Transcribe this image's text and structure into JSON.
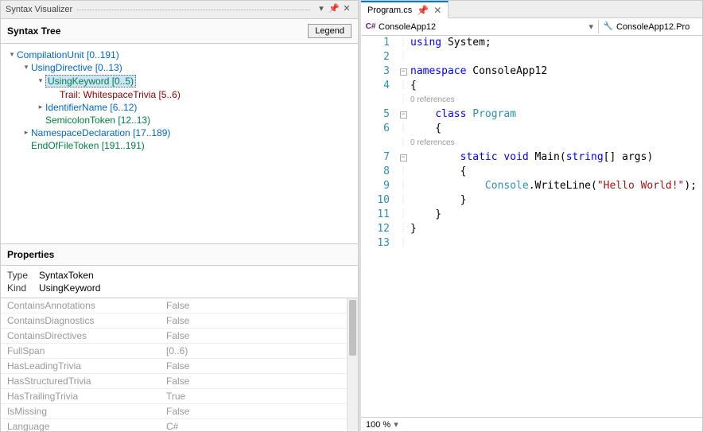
{
  "panelTitle": "Syntax Visualizer",
  "sectionTitle": "Syntax Tree",
  "legendLabel": "Legend",
  "tree": [
    {
      "indent": 0,
      "toggle": "▾",
      "cls": "c-blue",
      "text": "CompilationUnit [0..191)",
      "sel": false
    },
    {
      "indent": 1,
      "toggle": "▾",
      "cls": "c-blue",
      "text": "UsingDirective [0..13)",
      "sel": false
    },
    {
      "indent": 2,
      "toggle": "▾",
      "cls": "c-green",
      "text": "UsingKeyword [0..5)",
      "sel": true
    },
    {
      "indent": 3,
      "toggle": "",
      "cls": "c-darkred",
      "text": "Trail: WhitespaceTrivia [5..6)",
      "sel": false
    },
    {
      "indent": 2,
      "toggle": "▸",
      "cls": "c-blue",
      "text": "IdentifierName [6..12)",
      "sel": false
    },
    {
      "indent": 2,
      "toggle": "",
      "cls": "c-green",
      "text": "SemicolonToken [12..13)",
      "sel": false
    },
    {
      "indent": 1,
      "toggle": "▸",
      "cls": "c-blue",
      "text": "NamespaceDeclaration [17..189)",
      "sel": false
    },
    {
      "indent": 1,
      "toggle": "",
      "cls": "c-green",
      "text": "EndOfFileToken [191..191)",
      "sel": false
    }
  ],
  "propsTitle": "Properties",
  "propTop": [
    {
      "label": "Type",
      "value": "SyntaxToken"
    },
    {
      "label": "Kind",
      "value": "UsingKeyword"
    }
  ],
  "propGrid": [
    {
      "name": "ContainsAnnotations",
      "value": "False"
    },
    {
      "name": "ContainsDiagnostics",
      "value": "False"
    },
    {
      "name": "ContainsDirectives",
      "value": "False"
    },
    {
      "name": "FullSpan",
      "value": "[0..6)"
    },
    {
      "name": "HasLeadingTrivia",
      "value": "False"
    },
    {
      "name": "HasStructuredTrivia",
      "value": "False"
    },
    {
      "name": "HasTrailingTrivia",
      "value": "True"
    },
    {
      "name": "IsMissing",
      "value": "False"
    },
    {
      "name": "Language",
      "value": "C#"
    }
  ],
  "tab": {
    "label": "Program.cs",
    "closeVisible": true
  },
  "contextLeft": {
    "icon": "cs",
    "label": "ConsoleApp12"
  },
  "contextRight": {
    "icon": "wr",
    "label": "ConsoleApp12.Pro"
  },
  "zoom": "100 %",
  "codelens": "0 references",
  "code": {
    "lines": [
      {
        "n": 1,
        "fold": "",
        "segs": [
          {
            "t": "using",
            "c": "kw"
          },
          {
            "t": " System;",
            "c": "plain"
          }
        ]
      },
      {
        "n": 2,
        "fold": "",
        "segs": []
      },
      {
        "n": 3,
        "fold": "box",
        "segs": [
          {
            "t": "namespace",
            "c": "kw"
          },
          {
            "t": " ConsoleApp12",
            "c": "plain"
          }
        ]
      },
      {
        "n": 4,
        "fold": "",
        "segs": [
          {
            "t": "{",
            "c": "plain"
          }
        ]
      },
      {
        "n": null,
        "fold": "",
        "codelens": true,
        "indent": "    "
      },
      {
        "n": 5,
        "fold": "box",
        "segs": [
          {
            "t": "    ",
            "c": "plain"
          },
          {
            "t": "class",
            "c": "kw"
          },
          {
            "t": " ",
            "c": "plain"
          },
          {
            "t": "Program",
            "c": "type"
          }
        ]
      },
      {
        "n": 6,
        "fold": "",
        "segs": [
          {
            "t": "    {",
            "c": "plain"
          }
        ]
      },
      {
        "n": null,
        "fold": "",
        "codelens": true,
        "indent": "        "
      },
      {
        "n": 7,
        "fold": "box",
        "segs": [
          {
            "t": "        ",
            "c": "plain"
          },
          {
            "t": "static",
            "c": "kw"
          },
          {
            "t": " ",
            "c": "plain"
          },
          {
            "t": "void",
            "c": "kw"
          },
          {
            "t": " Main(",
            "c": "plain"
          },
          {
            "t": "string",
            "c": "kw"
          },
          {
            "t": "[] args)",
            "c": "plain"
          }
        ]
      },
      {
        "n": 8,
        "fold": "",
        "segs": [
          {
            "t": "        {",
            "c": "plain"
          }
        ]
      },
      {
        "n": 9,
        "fold": "",
        "segs": [
          {
            "t": "            ",
            "c": "plain"
          },
          {
            "t": "Console",
            "c": "type"
          },
          {
            "t": ".WriteLine(",
            "c": "plain"
          },
          {
            "t": "\"Hello World!\"",
            "c": "str"
          },
          {
            "t": ");",
            "c": "plain"
          }
        ]
      },
      {
        "n": 10,
        "fold": "",
        "segs": [
          {
            "t": "        }",
            "c": "plain"
          }
        ]
      },
      {
        "n": 11,
        "fold": "",
        "segs": [
          {
            "t": "    }",
            "c": "plain"
          }
        ]
      },
      {
        "n": 12,
        "fold": "",
        "segs": [
          {
            "t": "}",
            "c": "plain"
          }
        ]
      },
      {
        "n": 13,
        "fold": "",
        "segs": []
      }
    ]
  }
}
